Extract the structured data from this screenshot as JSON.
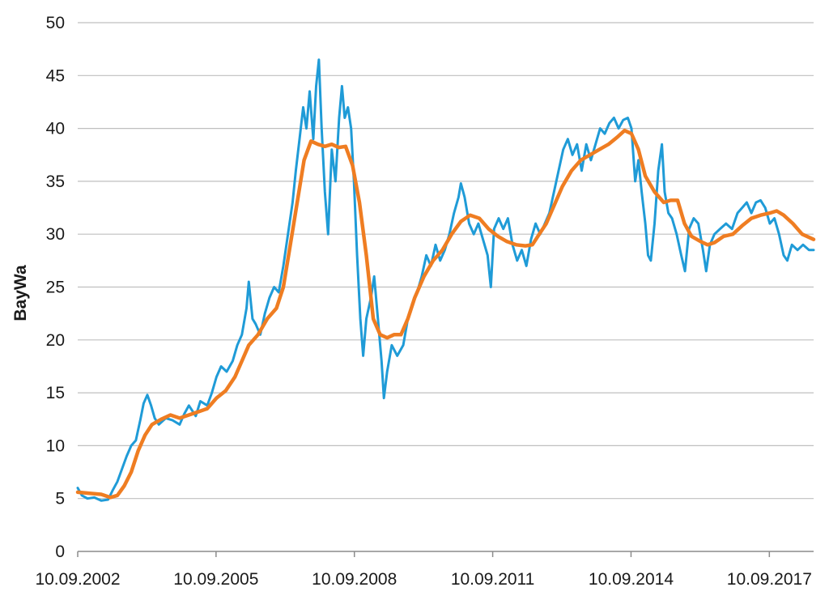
{
  "chart_data": {
    "type": "line",
    "ylabel": "BayWa",
    "xlabel": "",
    "ylim": [
      0,
      50
    ],
    "yticks": [
      0,
      5,
      10,
      15,
      20,
      25,
      30,
      35,
      40,
      45,
      50
    ],
    "x_tick_labels": [
      "10.09.2002",
      "10.09.2005",
      "10.09.2008",
      "10.09.2011",
      "10.09.2014",
      "10.09.2017"
    ],
    "x_tick_years": [
      2002.69,
      2005.69,
      2008.69,
      2011.69,
      2014.69,
      2017.69
    ],
    "xlim": [
      2002.69,
      2018.65
    ],
    "grid": "horizontal",
    "colors": {
      "price": "#1f9bd7",
      "average": "#ef7d22",
      "grid": "#bfbfbf",
      "axis": "#8c8c8c"
    },
    "series": [
      {
        "key": "price",
        "points": [
          [
            2002.69,
            6.0
          ],
          [
            2002.78,
            5.3
          ],
          [
            2002.9,
            5.0
          ],
          [
            2003.05,
            5.1
          ],
          [
            2003.2,
            4.8
          ],
          [
            2003.35,
            4.9
          ],
          [
            2003.45,
            5.8
          ],
          [
            2003.55,
            6.6
          ],
          [
            2003.65,
            7.8
          ],
          [
            2003.75,
            9.0
          ],
          [
            2003.85,
            10.0
          ],
          [
            2003.95,
            10.5
          ],
          [
            2004.05,
            12.5
          ],
          [
            2004.12,
            14.0
          ],
          [
            2004.2,
            14.8
          ],
          [
            2004.28,
            13.8
          ],
          [
            2004.36,
            12.6
          ],
          [
            2004.45,
            12.0
          ],
          [
            2004.6,
            12.6
          ],
          [
            2004.75,
            12.4
          ],
          [
            2004.9,
            12.0
          ],
          [
            2005.0,
            13.0
          ],
          [
            2005.1,
            13.8
          ],
          [
            2005.25,
            12.8
          ],
          [
            2005.35,
            14.2
          ],
          [
            2005.5,
            13.8
          ],
          [
            2005.6,
            15.0
          ],
          [
            2005.7,
            16.5
          ],
          [
            2005.8,
            17.5
          ],
          [
            2005.92,
            17.0
          ],
          [
            2006.05,
            18.0
          ],
          [
            2006.15,
            19.5
          ],
          [
            2006.25,
            20.5
          ],
          [
            2006.35,
            23.0
          ],
          [
            2006.4,
            25.5
          ],
          [
            2006.48,
            22.0
          ],
          [
            2006.55,
            21.5
          ],
          [
            2006.65,
            20.5
          ],
          [
            2006.75,
            22.5
          ],
          [
            2006.85,
            24.0
          ],
          [
            2006.95,
            25.0
          ],
          [
            2007.05,
            24.5
          ],
          [
            2007.15,
            27.0
          ],
          [
            2007.25,
            30.0
          ],
          [
            2007.35,
            33.0
          ],
          [
            2007.42,
            36.0
          ],
          [
            2007.5,
            39.0
          ],
          [
            2007.58,
            42.0
          ],
          [
            2007.65,
            40.0
          ],
          [
            2007.72,
            43.5
          ],
          [
            2007.8,
            39.0
          ],
          [
            2007.86,
            44.0
          ],
          [
            2007.92,
            46.5
          ],
          [
            2007.98,
            40.0
          ],
          [
            2008.05,
            34.0
          ],
          [
            2008.12,
            30.0
          ],
          [
            2008.2,
            38.0
          ],
          [
            2008.28,
            35.0
          ],
          [
            2008.36,
            41.0
          ],
          [
            2008.42,
            44.0
          ],
          [
            2008.48,
            41.0
          ],
          [
            2008.55,
            42.0
          ],
          [
            2008.62,
            40.0
          ],
          [
            2008.68,
            35.0
          ],
          [
            2008.75,
            28.0
          ],
          [
            2008.82,
            22.0
          ],
          [
            2008.88,
            18.5
          ],
          [
            2008.95,
            22.0
          ],
          [
            2009.05,
            24.0
          ],
          [
            2009.12,
            26.0
          ],
          [
            2009.2,
            22.0
          ],
          [
            2009.28,
            18.0
          ],
          [
            2009.33,
            14.5
          ],
          [
            2009.4,
            17.0
          ],
          [
            2009.5,
            19.5
          ],
          [
            2009.62,
            18.5
          ],
          [
            2009.75,
            19.5
          ],
          [
            2009.85,
            22.0
          ],
          [
            2009.95,
            23.5
          ],
          [
            2010.05,
            24.5
          ],
          [
            2010.15,
            26.0
          ],
          [
            2010.25,
            28.0
          ],
          [
            2010.35,
            27.0
          ],
          [
            2010.45,
            29.0
          ],
          [
            2010.55,
            27.5
          ],
          [
            2010.65,
            28.5
          ],
          [
            2010.75,
            30.0
          ],
          [
            2010.85,
            32.0
          ],
          [
            2010.95,
            33.5
          ],
          [
            2011.0,
            34.8
          ],
          [
            2011.08,
            33.5
          ],
          [
            2011.18,
            31.0
          ],
          [
            2011.28,
            30.0
          ],
          [
            2011.38,
            31.0
          ],
          [
            2011.48,
            29.5
          ],
          [
            2011.58,
            28.0
          ],
          [
            2011.65,
            25.0
          ],
          [
            2011.72,
            30.5
          ],
          [
            2011.82,
            31.5
          ],
          [
            2011.92,
            30.5
          ],
          [
            2012.02,
            31.5
          ],
          [
            2012.12,
            29.0
          ],
          [
            2012.22,
            27.5
          ],
          [
            2012.32,
            28.5
          ],
          [
            2012.42,
            27.0
          ],
          [
            2012.52,
            29.5
          ],
          [
            2012.62,
            31.0
          ],
          [
            2012.72,
            30.0
          ],
          [
            2012.82,
            31.0
          ],
          [
            2012.92,
            32.0
          ],
          [
            2013.02,
            34.0
          ],
          [
            2013.12,
            36.0
          ],
          [
            2013.22,
            38.0
          ],
          [
            2013.32,
            39.0
          ],
          [
            2013.42,
            37.5
          ],
          [
            2013.52,
            38.5
          ],
          [
            2013.62,
            36.0
          ],
          [
            2013.72,
            38.5
          ],
          [
            2013.82,
            37.0
          ],
          [
            2013.92,
            38.5
          ],
          [
            2014.02,
            40.0
          ],
          [
            2014.12,
            39.5
          ],
          [
            2014.22,
            40.5
          ],
          [
            2014.32,
            41.0
          ],
          [
            2014.42,
            40.0
          ],
          [
            2014.52,
            40.8
          ],
          [
            2014.62,
            41.0
          ],
          [
            2014.7,
            40.0
          ],
          [
            2014.78,
            35.0
          ],
          [
            2014.85,
            37.0
          ],
          [
            2014.92,
            34.0
          ],
          [
            2015.0,
            31.0
          ],
          [
            2015.06,
            28.0
          ],
          [
            2015.12,
            27.5
          ],
          [
            2015.2,
            31.0
          ],
          [
            2015.28,
            36.0
          ],
          [
            2015.36,
            38.5
          ],
          [
            2015.42,
            34.0
          ],
          [
            2015.5,
            32.0
          ],
          [
            2015.58,
            31.5
          ],
          [
            2015.68,
            30.0
          ],
          [
            2015.78,
            28.0
          ],
          [
            2015.86,
            26.5
          ],
          [
            2015.95,
            30.5
          ],
          [
            2016.05,
            31.5
          ],
          [
            2016.15,
            31.0
          ],
          [
            2016.25,
            28.5
          ],
          [
            2016.32,
            26.5
          ],
          [
            2016.4,
            29.0
          ],
          [
            2016.5,
            30.0
          ],
          [
            2016.62,
            30.5
          ],
          [
            2016.75,
            31.0
          ],
          [
            2016.88,
            30.5
          ],
          [
            2017.0,
            32.0
          ],
          [
            2017.1,
            32.5
          ],
          [
            2017.2,
            33.0
          ],
          [
            2017.3,
            32.0
          ],
          [
            2017.4,
            33.0
          ],
          [
            2017.5,
            33.2
          ],
          [
            2017.6,
            32.5
          ],
          [
            2017.7,
            31.0
          ],
          [
            2017.8,
            31.5
          ],
          [
            2017.9,
            30.0
          ],
          [
            2018.0,
            28.0
          ],
          [
            2018.08,
            27.5
          ],
          [
            2018.18,
            29.0
          ],
          [
            2018.3,
            28.5
          ],
          [
            2018.42,
            29.0
          ],
          [
            2018.55,
            28.5
          ],
          [
            2018.65,
            28.5
          ]
        ]
      },
      {
        "key": "average",
        "points": [
          [
            2002.69,
            5.6
          ],
          [
            2002.95,
            5.5
          ],
          [
            2003.2,
            5.4
          ],
          [
            2003.4,
            5.1
          ],
          [
            2003.55,
            5.3
          ],
          [
            2003.7,
            6.2
          ],
          [
            2003.85,
            7.5
          ],
          [
            2004.0,
            9.5
          ],
          [
            2004.15,
            11.0
          ],
          [
            2004.3,
            12.0
          ],
          [
            2004.5,
            12.5
          ],
          [
            2004.7,
            12.9
          ],
          [
            2004.9,
            12.6
          ],
          [
            2005.1,
            12.9
          ],
          [
            2005.3,
            13.2
          ],
          [
            2005.5,
            13.5
          ],
          [
            2005.7,
            14.5
          ],
          [
            2005.9,
            15.2
          ],
          [
            2006.1,
            16.5
          ],
          [
            2006.25,
            18.0
          ],
          [
            2006.4,
            19.5
          ],
          [
            2006.6,
            20.5
          ],
          [
            2006.8,
            22.0
          ],
          [
            2007.0,
            23.0
          ],
          [
            2007.15,
            25.0
          ],
          [
            2007.3,
            29.0
          ],
          [
            2007.45,
            33.0
          ],
          [
            2007.6,
            37.0
          ],
          [
            2007.75,
            38.8
          ],
          [
            2007.9,
            38.5
          ],
          [
            2008.05,
            38.3
          ],
          [
            2008.2,
            38.5
          ],
          [
            2008.35,
            38.2
          ],
          [
            2008.5,
            38.3
          ],
          [
            2008.65,
            36.5
          ],
          [
            2008.8,
            33.0
          ],
          [
            2008.95,
            28.0
          ],
          [
            2009.1,
            22.0
          ],
          [
            2009.25,
            20.5
          ],
          [
            2009.4,
            20.2
          ],
          [
            2009.55,
            20.5
          ],
          [
            2009.7,
            20.5
          ],
          [
            2009.85,
            22.0
          ],
          [
            2010.0,
            24.0
          ],
          [
            2010.2,
            26.0
          ],
          [
            2010.4,
            27.5
          ],
          [
            2010.6,
            28.5
          ],
          [
            2010.8,
            30.0
          ],
          [
            2011.0,
            31.2
          ],
          [
            2011.2,
            31.8
          ],
          [
            2011.4,
            31.5
          ],
          [
            2011.6,
            30.5
          ],
          [
            2011.8,
            29.8
          ],
          [
            2012.0,
            29.3
          ],
          [
            2012.2,
            29.0
          ],
          [
            2012.4,
            28.9
          ],
          [
            2012.55,
            29.0
          ],
          [
            2012.7,
            30.0
          ],
          [
            2012.85,
            31.0
          ],
          [
            2013.0,
            32.5
          ],
          [
            2013.2,
            34.5
          ],
          [
            2013.4,
            36.0
          ],
          [
            2013.6,
            37.0
          ],
          [
            2013.8,
            37.5
          ],
          [
            2014.0,
            38.0
          ],
          [
            2014.2,
            38.5
          ],
          [
            2014.4,
            39.2
          ],
          [
            2014.55,
            39.8
          ],
          [
            2014.7,
            39.5
          ],
          [
            2014.85,
            38.0
          ],
          [
            2015.0,
            35.5
          ],
          [
            2015.2,
            34.0
          ],
          [
            2015.4,
            33.0
          ],
          [
            2015.55,
            33.2
          ],
          [
            2015.7,
            33.2
          ],
          [
            2015.85,
            31.0
          ],
          [
            2016.0,
            29.8
          ],
          [
            2016.2,
            29.3
          ],
          [
            2016.35,
            29.0
          ],
          [
            2016.5,
            29.2
          ],
          [
            2016.7,
            29.8
          ],
          [
            2016.9,
            30.0
          ],
          [
            2017.1,
            30.8
          ],
          [
            2017.3,
            31.5
          ],
          [
            2017.5,
            31.8
          ],
          [
            2017.7,
            32.0
          ],
          [
            2017.85,
            32.2
          ],
          [
            2018.0,
            31.8
          ],
          [
            2018.2,
            31.0
          ],
          [
            2018.4,
            30.0
          ],
          [
            2018.65,
            29.5
          ]
        ]
      }
    ]
  }
}
